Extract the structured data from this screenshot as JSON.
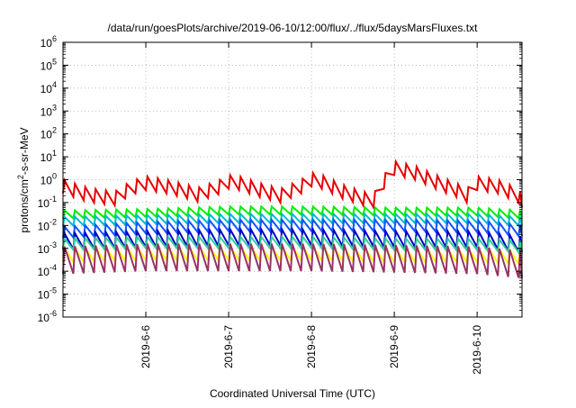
{
  "chart_data": {
    "type": "line",
    "title": "/data/run/goesPlots/archive/2019-06-10/12:00/flux/../flux/5daysMarsFluxes.txt",
    "xlabel": "Coordinated Universal Time (UTC)",
    "ylabel": {
      "prefix": "protons/cm",
      "sup": "2",
      "suffix": "-s-sr-MeV"
    },
    "y_scale": "log",
    "ylim": [
      1e-06,
      1000000.0
    ],
    "y_ticks": [
      {
        "value": 1e-06,
        "base": "10",
        "exp": "-6"
      },
      {
        "value": 1e-05,
        "base": "10",
        "exp": "-5"
      },
      {
        "value": 0.0001,
        "base": "10",
        "exp": "-4"
      },
      {
        "value": 0.001,
        "base": "10",
        "exp": "-3"
      },
      {
        "value": 0.01,
        "base": "10",
        "exp": "-2"
      },
      {
        "value": 0.1,
        "base": "10",
        "exp": "-1"
      },
      {
        "value": 1,
        "base": "10",
        "exp": "0"
      },
      {
        "value": 10.0,
        "base": "10",
        "exp": "1"
      },
      {
        "value": 100.0,
        "base": "10",
        "exp": "2"
      },
      {
        "value": 1000.0,
        "base": "10",
        "exp": "3"
      },
      {
        "value": 10000.0,
        "base": "10",
        "exp": "4"
      },
      {
        "value": 100000.0,
        "base": "10",
        "exp": "5"
      },
      {
        "value": 1000000.0,
        "base": "10",
        "exp": "6"
      }
    ],
    "xlim": [
      "2019-06-05 00:00",
      "2019-06-10 13:00"
    ],
    "x_ticks": [
      {
        "date": "2019-06-06 00:00",
        "label": "2019-6-6"
      },
      {
        "date": "2019-06-07 00:00",
        "label": "2019-6-7"
      },
      {
        "date": "2019-06-08 00:00",
        "label": "2019-6-8"
      },
      {
        "date": "2019-06-09 00:00",
        "label": "2019-6-9"
      },
      {
        "date": "2019-06-10 00:00",
        "label": "2019-6-10"
      }
    ],
    "grid": true,
    "sawtooth_period_hours": 3,
    "series": [
      {
        "color": "#e60000",
        "x": [
          "2019-06-05 00:00",
          "2019-06-05 06:00",
          "2019-06-05 09:00",
          "2019-06-05 15:00",
          "2019-06-05 18:00",
          "2019-06-05 21:00",
          "2019-06-06 00:00",
          "2019-06-06 06:00",
          "2019-06-06 12:00",
          "2019-06-06 15:00",
          "2019-06-06 21:00",
          "2019-06-07 00:00",
          "2019-06-07 03:00",
          "2019-06-07 06:00",
          "2019-06-07 09:00",
          "2019-06-07 15:00",
          "2019-06-07 21:00",
          "2019-06-08 00:00",
          "2019-06-08 03:00",
          "2019-06-08 06:00",
          "2019-06-08 09:00",
          "2019-06-08 15:00",
          "2019-06-08 18:00",
          "2019-06-08 21:00",
          "2019-06-09 00:00",
          "2019-06-09 06:00",
          "2019-06-09 12:00",
          "2019-06-09 18:00",
          "2019-06-09 21:00",
          "2019-06-10 00:00",
          "2019-06-10 06:00",
          "2019-06-10 12:00",
          "2019-06-10 13:00"
        ],
        "values": [
          0.5,
          0.25,
          0.2,
          0.15,
          0.3,
          0.5,
          0.7,
          0.5,
          0.3,
          0.22,
          0.45,
          0.8,
          0.7,
          0.5,
          0.35,
          0.2,
          0.5,
          1.0,
          0.8,
          0.5,
          0.3,
          0.15,
          0.12,
          0.8,
          3.2,
          2.0,
          0.8,
          0.35,
          0.2,
          0.7,
          0.5,
          0.2,
          0.12
        ],
        "sawtooth_rise": 0.6
      },
      {
        "color": "#00ee00",
        "x": [
          "2019-06-05 00:00",
          "2019-06-06 00:00",
          "2019-06-07 00:00",
          "2019-06-08 00:00",
          "2019-06-09 00:00",
          "2019-06-10 00:00",
          "2019-06-10 13:00"
        ],
        "values": [
          0.03,
          0.035,
          0.045,
          0.045,
          0.04,
          0.04,
          0.03
        ],
        "sawtooth_rise": 0.35
      },
      {
        "color": "#00bbcc",
        "x": [
          "2019-06-05 00:00",
          "2019-06-06 00:00",
          "2019-06-07 00:00",
          "2019-06-08 00:00",
          "2019-06-09 00:00",
          "2019-06-10 00:00",
          "2019-06-10 13:00"
        ],
        "values": [
          0.015,
          0.018,
          0.02,
          0.02,
          0.02,
          0.02,
          0.015
        ],
        "sawtooth_rise": 0.4
      },
      {
        "color": "#1155ff",
        "x": [
          "2019-06-05 00:00",
          "2019-06-06 00:00",
          "2019-06-07 00:00",
          "2019-06-08 00:00",
          "2019-06-09 00:00",
          "2019-06-10 00:00",
          "2019-06-10 13:00"
        ],
        "values": [
          0.005,
          0.008,
          0.01,
          0.01,
          0.01,
          0.009,
          0.006
        ],
        "sawtooth_rise": 0.5
      },
      {
        "color": "#0000c8",
        "x": [
          "2019-06-05 00:00",
          "2019-06-06 00:00",
          "2019-06-07 00:00",
          "2019-06-08 00:00",
          "2019-06-09 00:00",
          "2019-06-10 00:00",
          "2019-06-10 13:00"
        ],
        "values": [
          0.002,
          0.0025,
          0.003,
          0.003,
          0.0025,
          0.0025,
          0.0015
        ],
        "sawtooth_rise": 0.7
      },
      {
        "color": "#33cc99",
        "x": [
          "2019-06-05 00:00",
          "2019-06-06 00:00",
          "2019-06-07 00:00",
          "2019-06-08 00:00",
          "2019-06-09 00:00",
          "2019-06-10 00:00",
          "2019-06-10 13:00"
        ],
        "values": [
          0.0015,
          0.0018,
          0.0018,
          0.0018,
          0.0015,
          0.0015,
          0.0012
        ],
        "sawtooth_rise": 0.5
      },
      {
        "color": "#ffff00",
        "x": [
          "2019-06-05 00:00",
          "2019-06-06 00:00",
          "2019-06-07 00:00",
          "2019-06-08 00:00",
          "2019-06-09 00:00",
          "2019-06-10 00:00",
          "2019-06-10 13:00"
        ],
        "values": [
          0.0005,
          0.0006,
          0.0006,
          0.0006,
          0.0005,
          0.0005,
          0.0004
        ],
        "sawtooth_rise": 0.6
      },
      {
        "color": "#993366",
        "x": [
          "2019-06-05 00:00",
          "2019-06-06 00:00",
          "2019-06-07 00:00",
          "2019-06-08 00:00",
          "2019-06-09 00:00",
          "2019-06-10 00:00",
          "2019-06-10 13:00"
        ],
        "values": [
          0.0003,
          0.0004,
          0.0004,
          0.0004,
          0.00035,
          0.0003,
          0.0002
        ],
        "sawtooth_rise": 1.2
      }
    ]
  }
}
